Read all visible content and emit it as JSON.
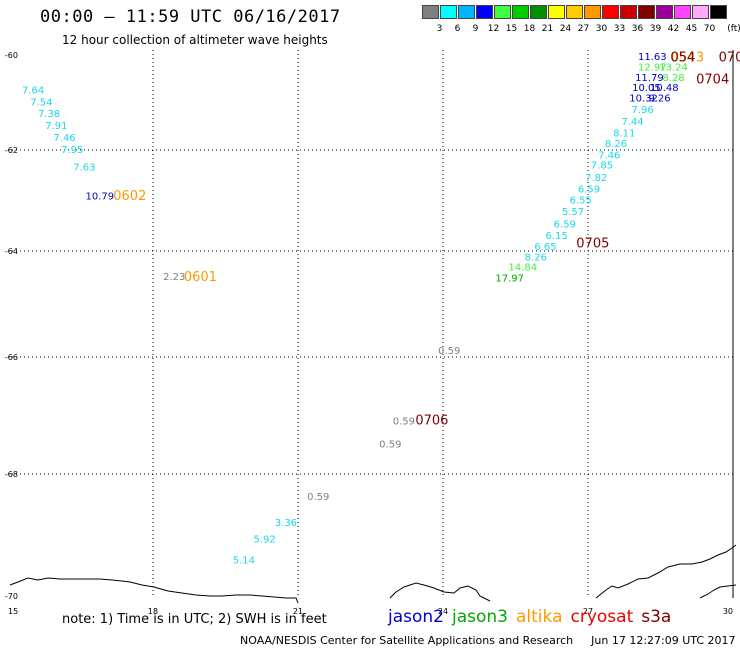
{
  "header": {
    "title": "00:00 – 11:59 UTC 06/16/2017",
    "subtitle": "12 hour collection of altimeter wave heights"
  },
  "legend": {
    "unit": "(ft)",
    "bins": [
      {
        "label": "3",
        "color": "#808080"
      },
      {
        "label": "6",
        "color": "#00ffff"
      },
      {
        "label": "9",
        "color": "#00b4ff"
      },
      {
        "label": "12",
        "color": "#0000ff"
      },
      {
        "label": "15",
        "color": "#40ff40"
      },
      {
        "label": "18",
        "color": "#00cc00"
      },
      {
        "label": "21",
        "color": "#009000"
      },
      {
        "label": "24",
        "color": "#ffff00"
      },
      {
        "label": "27",
        "color": "#ffcc00"
      },
      {
        "label": "30",
        "color": "#ff9900"
      },
      {
        "label": "33",
        "color": "#ff0000"
      },
      {
        "label": "36",
        "color": "#cc0000"
      },
      {
        "label": "39",
        "color": "#800000"
      },
      {
        "label": "42",
        "color": "#990099"
      },
      {
        "label": "45",
        "color": "#ff44ff"
      },
      {
        "label": "70",
        "color": "#ffaaff"
      },
      {
        "label": "",
        "color": "#000000"
      }
    ]
  },
  "axes": {
    "x_ticks": [
      "15",
      "18",
      "21",
      "24",
      "27",
      "30"
    ],
    "y_ticks": [
      "-60",
      "-62",
      "-64",
      "-66",
      "-68",
      "-70"
    ]
  },
  "colors": {
    "cyan": "#18d8e8",
    "blue": "#0000cc",
    "green": "#44ee44",
    "darkgreen": "#00aa00",
    "gray": "#808080",
    "orange": "#ff9900",
    "maroon": "#800000",
    "red": "#ee0000"
  },
  "wave_labels": [
    {
      "text": "7.64",
      "c": "cyan",
      "lon": 15.52,
      "lat": -60.81
    },
    {
      "text": "7.54",
      "c": "cyan",
      "lon": 15.69,
      "lat": -61.06
    },
    {
      "text": "7.38",
      "c": "cyan",
      "lon": 15.85,
      "lat": -61.31
    },
    {
      "text": "7.91",
      "c": "cyan",
      "lon": 16.0,
      "lat": -61.56
    },
    {
      "text": "7.46",
      "c": "cyan",
      "lon": 16.17,
      "lat": -61.81
    },
    {
      "text": "7.95",
      "c": "cyan",
      "lon": 16.33,
      "lat": -62.06
    },
    {
      "text": "7.63",
      "c": "cyan",
      "lon": 16.58,
      "lat": -62.41
    },
    {
      "text": "10.79",
      "c": "blue",
      "lon": 16.9,
      "lat": -62.98
    },
    {
      "text": "2.23",
      "c": "gray",
      "lon": 18.44,
      "lat": -64.55
    },
    {
      "text": "0.59",
      "c": "gray",
      "lon": 24.13,
      "lat": -65.94
    },
    {
      "text": "0.59",
      "c": "gray",
      "lon": 23.19,
      "lat": -67.15
    },
    {
      "text": "0.59",
      "c": "gray",
      "lon": 22.91,
      "lat": -67.55
    },
    {
      "text": "0.59",
      "c": "gray",
      "lon": 21.42,
      "lat": -68.43
    },
    {
      "text": "3.36",
      "c": "cyan",
      "lon": 20.75,
      "lat": -68.85
    },
    {
      "text": "5.92",
      "c": "cyan",
      "lon": 20.31,
      "lat": -69.12
    },
    {
      "text": "5.14",
      "c": "cyan",
      "lon": 19.88,
      "lat": -69.47
    },
    {
      "text": "11.63",
      "c": "blue",
      "lon": 28.33,
      "lat": -60.1
    },
    {
      "text": "12.97",
      "c": "green",
      "lon": 28.33,
      "lat": -60.33
    },
    {
      "text": "13.24",
      "c": "green",
      "lon": 28.77,
      "lat": -60.33
    },
    {
      "text": "11.79",
      "c": "blue",
      "lon": 28.27,
      "lat": -60.55
    },
    {
      "text": "8.28",
      "c": "green",
      "lon": 28.77,
      "lat": -60.55
    },
    {
      "text": "10.05",
      "c": "blue",
      "lon": 28.21,
      "lat": -60.76
    },
    {
      "text": "10.48",
      "c": "blue",
      "lon": 28.58,
      "lat": -60.76
    },
    {
      "text": "10.32",
      "c": "blue",
      "lon": 28.15,
      "lat": -60.98
    },
    {
      "text": "9.26",
      "c": "blue",
      "lon": 28.48,
      "lat": -60.98
    },
    {
      "text": "7.96",
      "c": "cyan",
      "lon": 28.13,
      "lat": -61.22
    },
    {
      "text": "7.44",
      "c": "cyan",
      "lon": 27.92,
      "lat": -61.47
    },
    {
      "text": "8.11",
      "c": "cyan",
      "lon": 27.75,
      "lat": -61.72
    },
    {
      "text": "8.26",
      "c": "cyan",
      "lon": 27.58,
      "lat": -61.94
    },
    {
      "text": "7.46",
      "c": "cyan",
      "lon": 27.44,
      "lat": -62.17
    },
    {
      "text": "7.85",
      "c": "cyan",
      "lon": 27.29,
      "lat": -62.37
    },
    {
      "text": "7.82",
      "c": "cyan",
      "lon": 27.17,
      "lat": -62.61
    },
    {
      "text": "6.59",
      "c": "cyan",
      "lon": 27.02,
      "lat": -62.84
    },
    {
      "text": "6.55",
      "c": "cyan",
      "lon": 26.85,
      "lat": -63.06
    },
    {
      "text": "5.57",
      "c": "cyan",
      "lon": 26.69,
      "lat": -63.29
    },
    {
      "text": "6.59",
      "c": "cyan",
      "lon": 26.52,
      "lat": -63.53
    },
    {
      "text": "6.15",
      "c": "cyan",
      "lon": 26.35,
      "lat": -63.76
    },
    {
      "text": "6.65",
      "c": "cyan",
      "lon": 26.12,
      "lat": -63.98
    },
    {
      "text": "8.26",
      "c": "cyan",
      "lon": 25.92,
      "lat": -64.18
    },
    {
      "text": "14.84",
      "c": "green",
      "lon": 25.65,
      "lat": -64.37
    },
    {
      "text": "17.97",
      "c": "darkgreen",
      "lon": 25.38,
      "lat": -64.58
    }
  ],
  "time_labels": [
    {
      "text": "0602",
      "c": "orange",
      "lon": 17.52,
      "lat": -62.99
    },
    {
      "text": "0601",
      "c": "orange",
      "lon": 18.98,
      "lat": -64.57
    },
    {
      "text": "0706",
      "c": "maroon",
      "lon": 23.77,
      "lat": -67.15
    },
    {
      "text": "0705",
      "c": "maroon",
      "lon": 27.1,
      "lat": -63.93
    },
    {
      "text": "0704",
      "c": "maroon",
      "lon": 29.58,
      "lat": -60.6
    },
    {
      "text": "0543",
      "c": "orange",
      "lon": 29.06,
      "lat": -60.14
    },
    {
      "text": "054",
      "c": "maroon",
      "lon": 28.96,
      "lat": -60.14
    },
    {
      "text": "070",
      "c": "maroon",
      "lon": 29.96,
      "lat": -60.14
    }
  ],
  "footer": {
    "note": "note: 1) Time is in UTC; 2) SWH is in feet",
    "credit": "NOAA/NESDIS Center for Satellite Applications and Research",
    "timestamp": "Jun 17 12:27:09 UTC 2017"
  },
  "satellites": [
    {
      "name": "jason2",
      "color": "#0000cc"
    },
    {
      "name": "jason3",
      "color": "#00aa00"
    },
    {
      "name": "altika",
      "color": "#ff9900"
    },
    {
      "name": "cryosat",
      "color": "#ee0000"
    },
    {
      "name": "s3a",
      "color": "#800000"
    }
  ]
}
